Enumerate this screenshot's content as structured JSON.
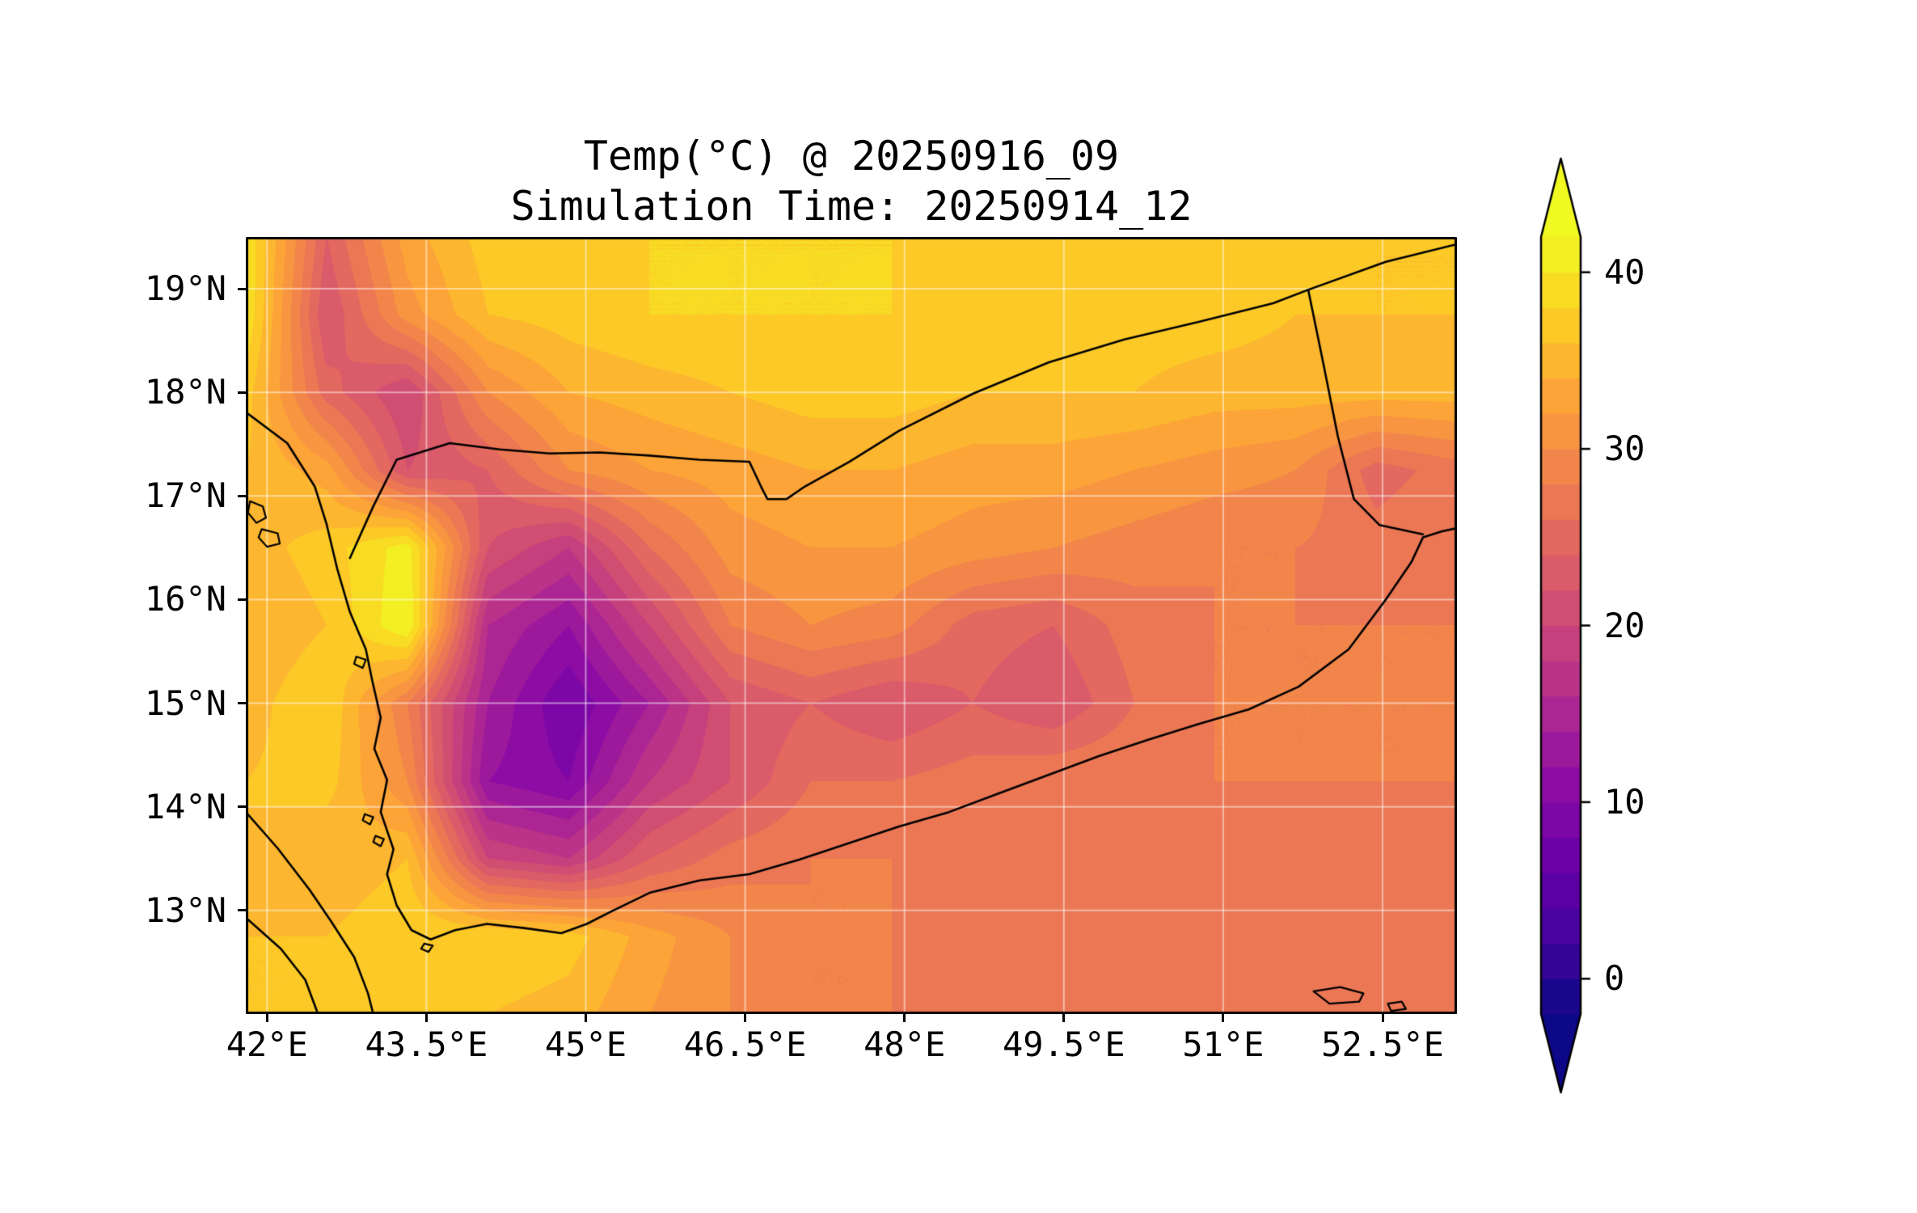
{
  "chart_data": {
    "type": "heatmap",
    "title": "Temp(°C) @ 20250916_09",
    "subtitle": "Simulation Time: 20250914_12",
    "variable": "Temperature (°C)",
    "valid_time": "20250916_09",
    "simulation_time": "20250914_12",
    "x_ticks": [
      "42°E",
      "43.5°E",
      "45°E",
      "46.5°E",
      "48°E",
      "49.5°E",
      "51°E",
      "52.5°E"
    ],
    "x_tick_values": [
      42,
      43.5,
      45,
      46.5,
      48,
      49.5,
      51,
      52.5
    ],
    "y_ticks": [
      "13°N",
      "14°N",
      "15°N",
      "16°N",
      "17°N",
      "18°N",
      "19°N"
    ],
    "y_tick_values": [
      13,
      14,
      15,
      16,
      17,
      18,
      19
    ],
    "extent": {
      "lon_min": 41.8,
      "lon_max": 53.2,
      "lat_min": 12.0,
      "lat_max": 19.5
    },
    "gridline_color": "rgba(255,255,255,0.5)",
    "colorbar": {
      "vmin": -2,
      "vmax": 42,
      "level_step": 2,
      "tick_values": [
        0,
        10,
        20,
        30,
        40
      ],
      "tick_labels": [
        "0",
        "10",
        "20",
        "30",
        "40"
      ],
      "extend": "both",
      "colormap": "plasma"
    },
    "colormap_stops": [
      [
        0.0,
        "#0d0887"
      ],
      [
        0.1,
        "#46039f"
      ],
      [
        0.2,
        "#6a00a8"
      ],
      [
        0.3,
        "#8f0da4"
      ],
      [
        0.4,
        "#b12a90"
      ],
      [
        0.5,
        "#cc4778"
      ],
      [
        0.6,
        "#e16462"
      ],
      [
        0.7,
        "#f2844b"
      ],
      [
        0.8,
        "#fca636"
      ],
      [
        0.9,
        "#fcce25"
      ],
      [
        1.0,
        "#f0f921"
      ]
    ],
    "grid": {
      "lons": [
        41.8,
        42.56,
        43.32,
        44.08,
        44.84,
        45.6,
        46.36,
        47.12,
        47.88,
        48.64,
        49.4,
        50.16,
        50.92,
        51.68,
        52.44,
        53.2
      ],
      "lats": [
        19.5,
        18.75,
        18.0,
        17.25,
        16.5,
        15.75,
        15.0,
        14.25,
        13.5,
        12.75,
        12.0
      ],
      "values": [
        [
          40,
          24,
          33,
          37,
          38,
          38,
          38,
          38,
          38,
          37,
          37,
          37,
          37,
          37,
          36,
          36
        ],
        [
          40,
          22,
          31,
          36,
          37,
          38,
          38,
          38,
          38,
          37,
          37,
          37,
          37,
          36,
          36,
          36
        ],
        [
          37,
          25,
          20,
          30,
          34,
          35,
          36,
          37,
          37,
          36,
          36,
          36,
          35,
          35,
          35,
          35
        ],
        [
          36,
          33,
          22,
          24,
          30,
          32,
          33,
          34,
          34,
          33,
          33,
          32,
          31,
          30,
          25,
          27
        ],
        [
          35,
          37,
          41,
          22,
          18,
          26,
          31,
          32,
          32,
          31,
          30,
          29,
          28,
          28,
          27,
          28
        ],
        [
          34,
          36,
          42,
          16,
          12,
          20,
          28,
          30,
          29,
          25,
          24,
          27,
          28,
          28,
          28,
          28
        ],
        [
          35,
          38,
          28,
          14,
          8,
          14,
          22,
          24,
          22,
          24,
          22,
          26,
          28,
          28,
          28,
          28
        ],
        [
          36,
          37,
          30,
          12,
          10,
          18,
          22,
          26,
          26,
          27,
          28,
          28,
          28,
          28,
          28,
          28
        ],
        [
          36,
          34,
          36,
          20,
          18,
          24,
          27,
          28,
          28,
          28,
          27,
          27,
          27,
          27,
          27,
          27
        ],
        [
          36,
          36,
          38,
          38,
          37,
          33,
          30,
          28,
          28,
          27,
          27,
          27,
          27,
          27,
          27,
          27
        ],
        [
          36,
          36,
          36,
          36,
          35,
          32,
          30,
          28,
          28,
          27,
          27,
          27,
          27,
          27,
          27,
          27
        ]
      ]
    },
    "coastlines": [
      [
        [
          41.8,
          17.81
        ],
        [
          42.19,
          17.51
        ],
        [
          42.45,
          17.09
        ],
        [
          42.56,
          16.73
        ],
        [
          42.66,
          16.3
        ],
        [
          42.78,
          15.88
        ],
        [
          42.93,
          15.52
        ],
        [
          42.99,
          15.22
        ],
        [
          43.07,
          14.86
        ],
        [
          43.01,
          14.56
        ],
        [
          43.13,
          14.26
        ],
        [
          43.07,
          13.95
        ],
        [
          43.19,
          13.59
        ],
        [
          43.13,
          13.35
        ],
        [
          43.22,
          13.05
        ],
        [
          43.36,
          12.81
        ],
        [
          43.54,
          12.72
        ],
        [
          43.77,
          12.81
        ],
        [
          44.07,
          12.87
        ],
        [
          44.42,
          12.83
        ],
        [
          44.77,
          12.78
        ],
        [
          45.01,
          12.87
        ],
        [
          45.24,
          12.99
        ],
        [
          45.6,
          13.17
        ],
        [
          46.07,
          13.29
        ],
        [
          46.54,
          13.35
        ],
        [
          47.01,
          13.49
        ],
        [
          47.48,
          13.65
        ],
        [
          47.95,
          13.81
        ],
        [
          48.42,
          13.95
        ],
        [
          48.89,
          14.13
        ],
        [
          49.36,
          14.31
        ],
        [
          49.83,
          14.49
        ],
        [
          50.3,
          14.65
        ],
        [
          50.77,
          14.8
        ],
        [
          51.24,
          14.94
        ],
        [
          51.71,
          15.16
        ],
        [
          52.18,
          15.52
        ],
        [
          52.53,
          16.0
        ],
        [
          52.77,
          16.36
        ],
        [
          52.88,
          16.6
        ],
        [
          53.06,
          16.66
        ],
        [
          53.2,
          16.69
        ]
      ],
      [
        [
          41.8,
          13.95
        ],
        [
          42.1,
          13.6
        ],
        [
          42.4,
          13.2
        ],
        [
          42.6,
          12.9
        ],
        [
          42.82,
          12.55
        ],
        [
          42.95,
          12.2
        ],
        [
          43.0,
          12.0
        ]
      ],
      [
        [
          41.8,
          12.93
        ],
        [
          42.13,
          12.63
        ],
        [
          42.36,
          12.33
        ],
        [
          42.48,
          12.0
        ]
      ]
    ],
    "borders": [
      [
        [
          42.78,
          16.4
        ],
        [
          43.0,
          16.9
        ],
        [
          43.22,
          17.35
        ],
        [
          43.72,
          17.51
        ],
        [
          44.19,
          17.45
        ],
        [
          44.66,
          17.41
        ],
        [
          45.13,
          17.42
        ],
        [
          45.6,
          17.39
        ],
        [
          46.07,
          17.35
        ],
        [
          46.54,
          17.33
        ],
        [
          46.65,
          17.09
        ],
        [
          46.71,
          16.97
        ],
        [
          46.89,
          16.97
        ],
        [
          47.06,
          17.09
        ],
        [
          47.48,
          17.33
        ],
        [
          47.95,
          17.63
        ],
        [
          48.65,
          17.99
        ],
        [
          49.36,
          18.29
        ],
        [
          50.07,
          18.51
        ],
        [
          50.77,
          18.68
        ],
        [
          51.47,
          18.86
        ],
        [
          51.8,
          18.99
        ],
        [
          52.53,
          19.26
        ],
        [
          53.2,
          19.43
        ]
      ],
      [
        [
          51.8,
          18.99
        ],
        [
          51.94,
          18.29
        ],
        [
          52.08,
          17.57
        ],
        [
          52.23,
          16.97
        ],
        [
          52.47,
          16.72
        ],
        [
          52.88,
          16.63
        ]
      ]
    ],
    "islands": [
      [
        [
          41.84,
          16.95
        ],
        [
          41.96,
          16.9
        ],
        [
          41.99,
          16.79
        ],
        [
          41.9,
          16.74
        ],
        [
          41.82,
          16.84
        ]
      ],
      [
        [
          41.95,
          16.68
        ],
        [
          42.1,
          16.64
        ],
        [
          42.12,
          16.54
        ],
        [
          42.0,
          16.51
        ],
        [
          41.92,
          16.6
        ]
      ],
      [
        [
          42.84,
          15.45
        ],
        [
          42.93,
          15.42
        ],
        [
          42.9,
          15.34
        ],
        [
          42.82,
          15.38
        ]
      ],
      [
        [
          42.92,
          13.93
        ],
        [
          43.0,
          13.9
        ],
        [
          42.97,
          13.83
        ],
        [
          42.9,
          13.87
        ]
      ],
      [
        [
          43.02,
          13.72
        ],
        [
          43.1,
          13.69
        ],
        [
          43.07,
          13.62
        ],
        [
          43.0,
          13.66
        ]
      ],
      [
        [
          43.48,
          12.68
        ],
        [
          43.56,
          12.66
        ],
        [
          43.52,
          12.6
        ],
        [
          43.45,
          12.63
        ]
      ],
      [
        [
          51.85,
          12.22
        ],
        [
          52.1,
          12.26
        ],
        [
          52.32,
          12.2
        ],
        [
          52.28,
          12.12
        ],
        [
          52.0,
          12.1
        ]
      ],
      [
        [
          52.55,
          12.1
        ],
        [
          52.68,
          12.12
        ],
        [
          52.72,
          12.05
        ],
        [
          52.58,
          12.03
        ]
      ]
    ]
  }
}
